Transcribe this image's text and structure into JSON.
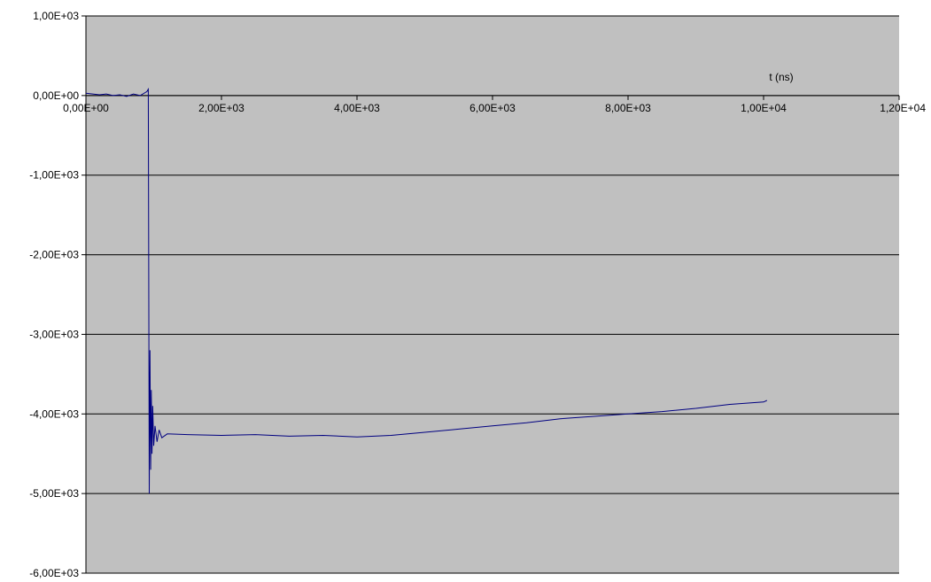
{
  "chart_data": {
    "type": "line",
    "xlabel": "t (ns)",
    "ylabel": "",
    "xlim": [
      0,
      12000
    ],
    "ylim": [
      -6000,
      1000
    ],
    "x_ticks": [
      0,
      2000,
      4000,
      6000,
      8000,
      10000,
      12000
    ],
    "y_ticks": [
      1000,
      0,
      -1000,
      -2000,
      -3000,
      -4000,
      -5000,
      -6000
    ],
    "x_tick_labels": [
      "0,00E+00",
      "2,00E+03",
      "4,00E+03",
      "6,00E+03",
      "8,00E+03",
      "1,00E+04",
      "1,20E+04"
    ],
    "y_tick_labels": [
      "1,00E+03",
      "0,00E+00",
      "-1,00E+03",
      "-2,00E+03",
      "-3,00E+03",
      "-4,00E+03",
      "-5,00E+03",
      "-6,00E+03"
    ],
    "grid": {
      "horizontal": true,
      "vertical": false
    },
    "legend": "none",
    "colors": {
      "plot_background": "#c0c0c0",
      "series": "#000080",
      "grid": "#000000"
    },
    "series": [
      {
        "x": [
          0,
          100,
          200,
          300,
          400,
          500,
          600,
          700,
          800,
          900,
          920,
          935,
          945,
          955,
          965,
          975,
          985,
          1000,
          1020,
          1050,
          1080,
          1120,
          1200,
          1500,
          2000,
          2500,
          3000,
          3500,
          4000,
          4500,
          5000,
          5500,
          6000,
          6500,
          7000,
          7500,
          8000,
          8500,
          9000,
          9500,
          10000,
          10050
        ],
        "y": [
          30,
          20,
          10,
          20,
          0,
          10,
          -10,
          20,
          0,
          50,
          80,
          -5000,
          -3200,
          -4700,
          -3700,
          -4500,
          -3900,
          -4400,
          -4150,
          -4350,
          -4200,
          -4300,
          -4250,
          -4260,
          -4270,
          -4260,
          -4280,
          -4270,
          -4290,
          -4270,
          -4230,
          -4190,
          -4150,
          -4110,
          -4060,
          -4030,
          -4000,
          -3970,
          -3930,
          -3880,
          -3850,
          -3830
        ]
      }
    ]
  }
}
